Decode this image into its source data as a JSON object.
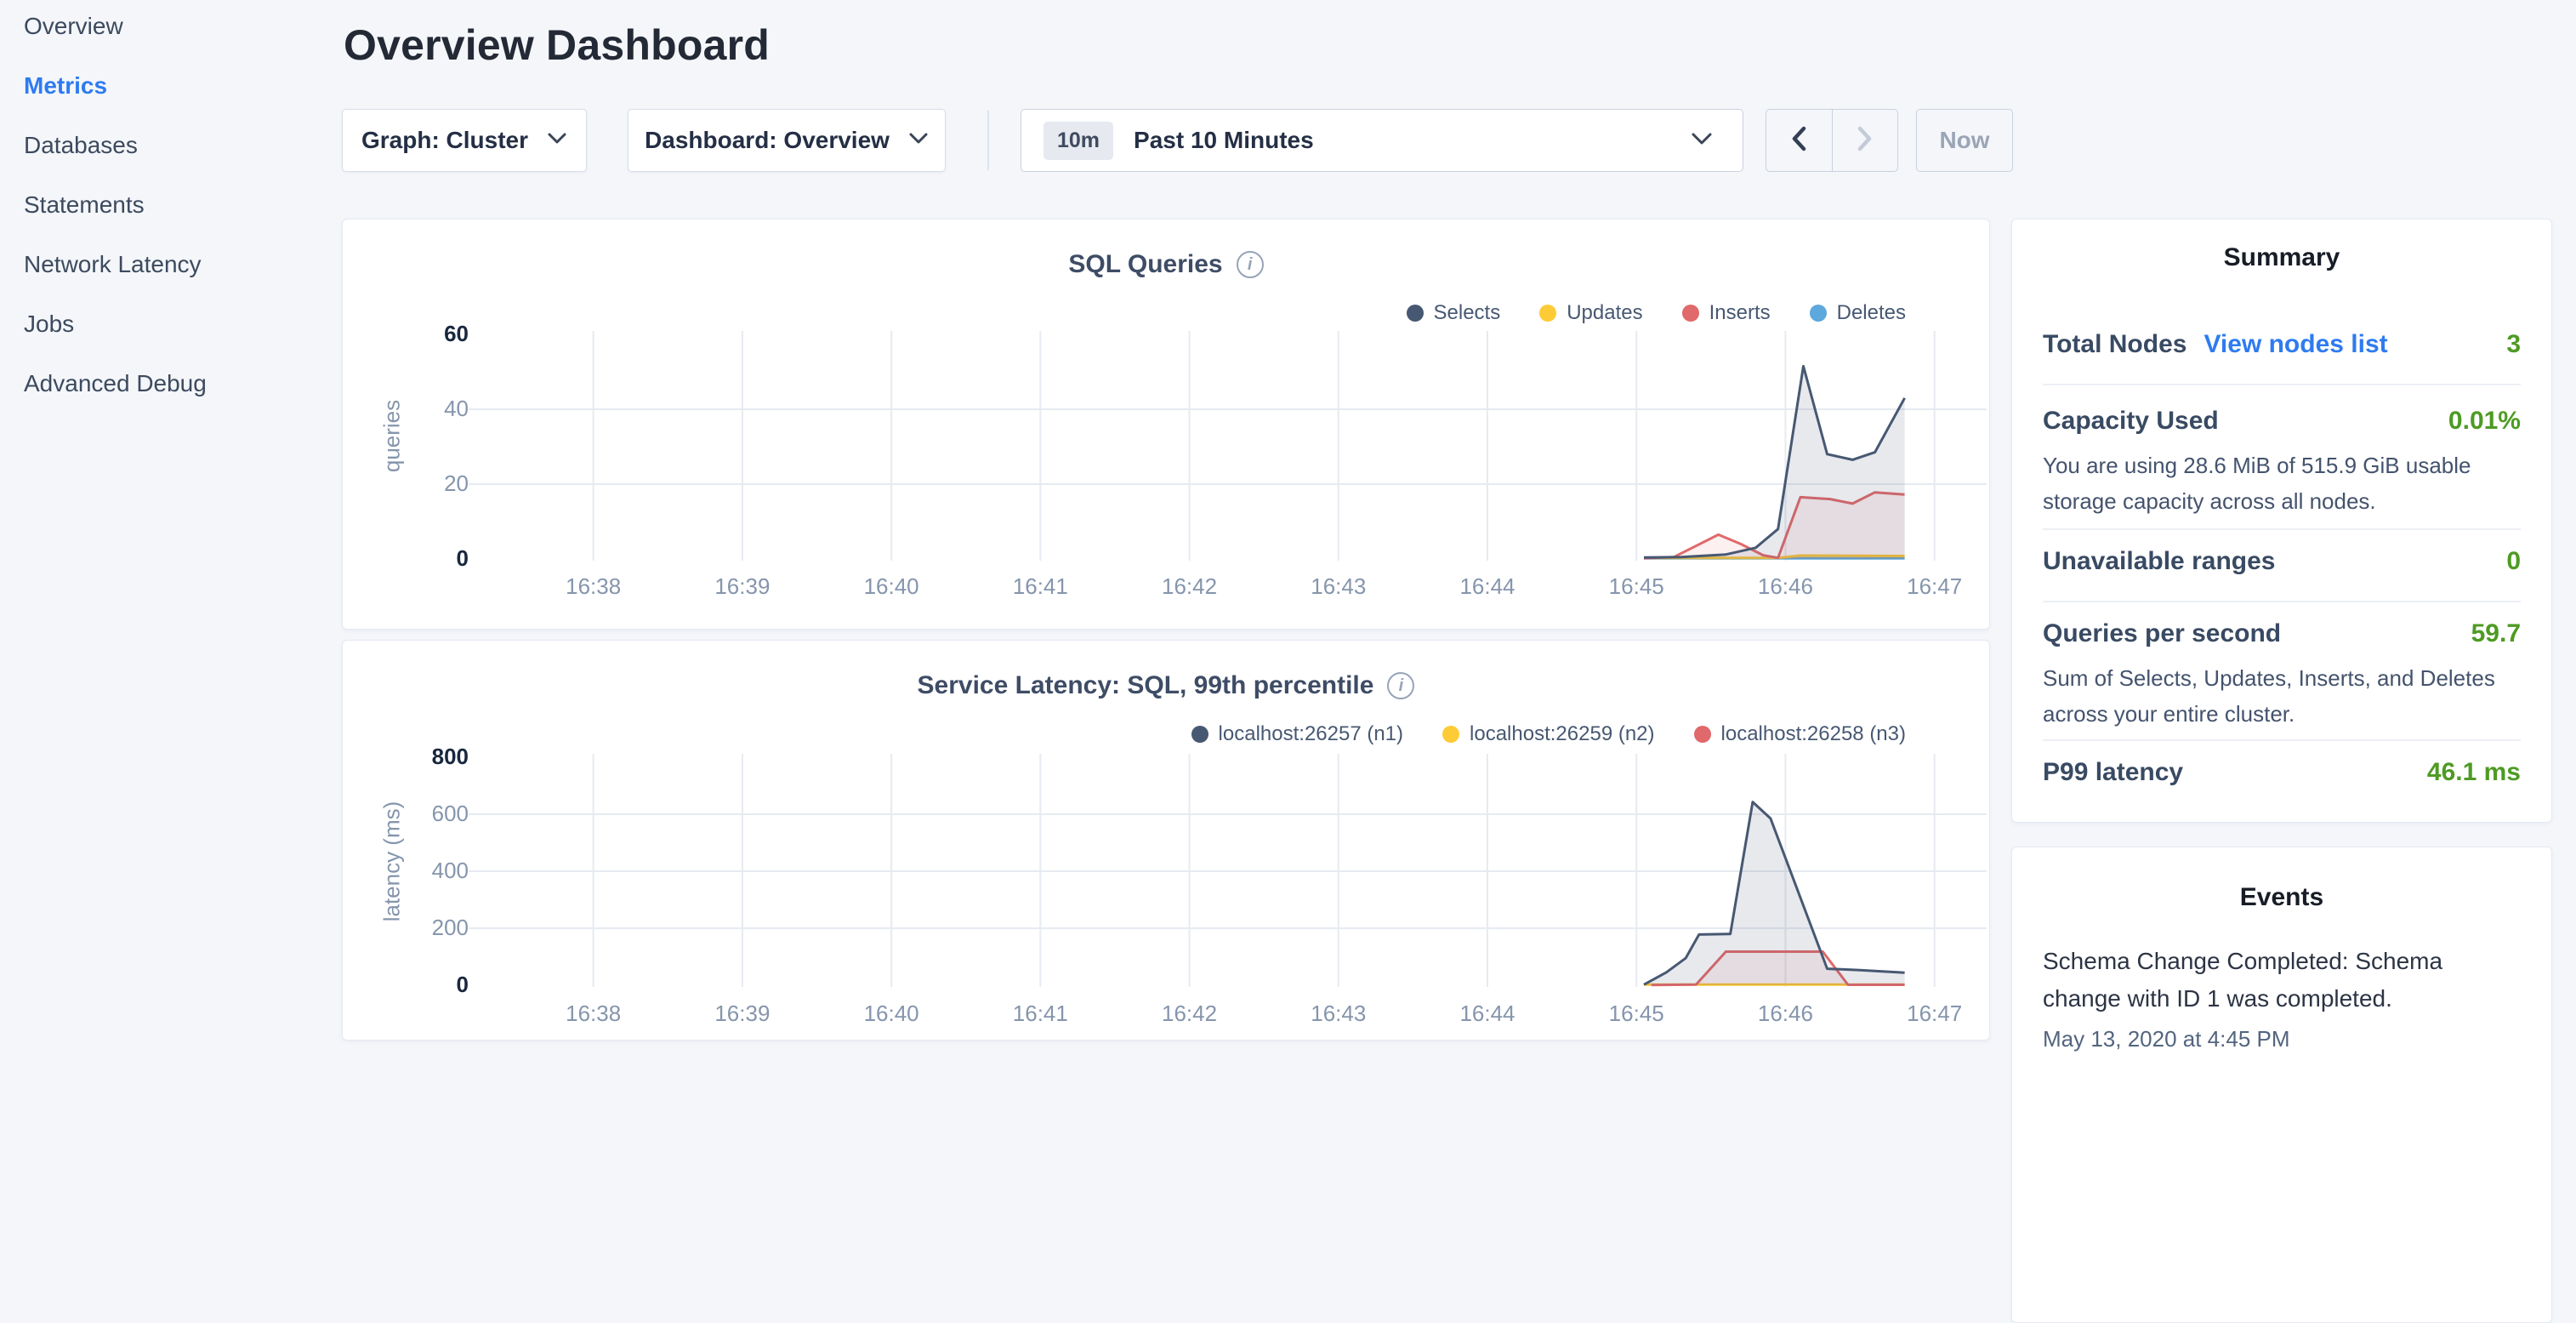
{
  "sidebar": {
    "items": [
      {
        "label": "Overview",
        "active": false
      },
      {
        "label": "Metrics",
        "active": true
      },
      {
        "label": "Databases",
        "active": false
      },
      {
        "label": "Statements",
        "active": false
      },
      {
        "label": "Network Latency",
        "active": false
      },
      {
        "label": "Jobs",
        "active": false
      },
      {
        "label": "Advanced Debug",
        "active": false
      }
    ]
  },
  "header": {
    "title": "Overview Dashboard"
  },
  "controls": {
    "graph_dropdown": {
      "label": "Graph: Cluster"
    },
    "dashboard_dropdown": {
      "label": "Dashboard: Overview"
    },
    "time_selector": {
      "badge": "10m",
      "label": "Past 10 Minutes"
    },
    "now_label": "Now"
  },
  "colors": {
    "accent_blue": "#2e7bf0",
    "value_green": "#4e9b23",
    "grid": "#e6eaf1",
    "series_navy": "#475872",
    "series_yellow": "#fdcb35",
    "series_red": "#e0696b",
    "series_blue": "#5da8dd"
  },
  "chart_data": [
    {
      "id": "sql-queries",
      "type": "area",
      "title": "SQL Queries",
      "ylabel": "queries",
      "x_ticks": [
        {
          "minute": 38,
          "label": "16:38"
        },
        {
          "minute": 39,
          "label": "16:39"
        },
        {
          "minute": 40,
          "label": "16:40"
        },
        {
          "minute": 41,
          "label": "16:41"
        },
        {
          "minute": 42,
          "label": "16:42"
        },
        {
          "minute": 43,
          "label": "16:43"
        },
        {
          "minute": 44,
          "label": "16:44"
        },
        {
          "minute": 45,
          "label": "16:45"
        },
        {
          "minute": 46,
          "label": "16:46"
        },
        {
          "minute": 47,
          "label": "16:47"
        }
      ],
      "y_ticks": [
        {
          "v": 0,
          "label": "0",
          "bold": true
        },
        {
          "v": 20,
          "label": "20",
          "bold": false
        },
        {
          "v": 40,
          "label": "40",
          "bold": false
        },
        {
          "v": 60,
          "label": "60",
          "bold": true
        }
      ],
      "y_gridlines": [
        20,
        40
      ],
      "ylim": [
        0,
        60
      ],
      "legend_position": "top-right",
      "grid": true,
      "series": [
        {
          "name": "Selects",
          "color": "#475872",
          "fill_alpha": 0.13,
          "points": [
            [
              45.05,
              0.4
            ],
            [
              45.3,
              0.5
            ],
            [
              45.6,
              1.2
            ],
            [
              45.8,
              3
            ],
            [
              45.95,
              8
            ],
            [
              46.12,
              51.5
            ],
            [
              46.28,
              28
            ],
            [
              46.45,
              26.5
            ],
            [
              46.6,
              28.5
            ],
            [
              46.8,
              43
            ]
          ]
        },
        {
          "name": "Updates",
          "color": "#fdcb35",
          "fill_alpha": 0.08,
          "points": [
            [
              45.05,
              0.3
            ],
            [
              45.95,
              0.3
            ],
            [
              46.1,
              0.9
            ],
            [
              46.8,
              0.8
            ]
          ]
        },
        {
          "name": "Inserts",
          "color": "#e0696b",
          "fill_alpha": 0.1,
          "points": [
            [
              45.05,
              0.2
            ],
            [
              45.25,
              0.5
            ],
            [
              45.55,
              6.5
            ],
            [
              45.7,
              4
            ],
            [
              45.85,
              1
            ],
            [
              45.95,
              0.3
            ],
            [
              46.1,
              16.5
            ],
            [
              46.3,
              16
            ],
            [
              46.45,
              14.8
            ],
            [
              46.6,
              17.8
            ],
            [
              46.8,
              17.2
            ]
          ]
        },
        {
          "name": "Deletes",
          "color": "#5da8dd",
          "fill_alpha": 0.08,
          "points": [
            [
              45.05,
              0.15
            ],
            [
              46.8,
              0.15
            ]
          ]
        }
      ],
      "draw_order": [
        3,
        1,
        2,
        0
      ]
    },
    {
      "id": "service-latency",
      "type": "area",
      "title": "Service Latency: SQL, 99th percentile",
      "ylabel": "latency (ms)",
      "x_ticks": [
        {
          "minute": 38,
          "label": "16:38"
        },
        {
          "minute": 39,
          "label": "16:39"
        },
        {
          "minute": 40,
          "label": "16:40"
        },
        {
          "minute": 41,
          "label": "16:41"
        },
        {
          "minute": 42,
          "label": "16:42"
        },
        {
          "minute": 43,
          "label": "16:43"
        },
        {
          "minute": 44,
          "label": "16:44"
        },
        {
          "minute": 45,
          "label": "16:45"
        },
        {
          "minute": 46,
          "label": "16:46"
        },
        {
          "minute": 47,
          "label": "16:47"
        }
      ],
      "y_ticks": [
        {
          "v": 0,
          "label": "0",
          "bold": true
        },
        {
          "v": 200,
          "label": "200",
          "bold": false
        },
        {
          "v": 400,
          "label": "400",
          "bold": false
        },
        {
          "v": 600,
          "label": "600",
          "bold": false
        },
        {
          "v": 800,
          "label": "800",
          "bold": true
        }
      ],
      "y_gridlines": [
        200,
        400,
        600
      ],
      "ylim": [
        0,
        800
      ],
      "legend_position": "top-right",
      "grid": true,
      "series": [
        {
          "name": "localhost:26257 (n1)",
          "color": "#475872",
          "fill_alpha": 0.13,
          "points": [
            [
              45.05,
              2
            ],
            [
              45.2,
              45
            ],
            [
              45.33,
              95
            ],
            [
              45.42,
              178
            ],
            [
              45.63,
              180
            ],
            [
              45.78,
              643
            ],
            [
              45.9,
              585
            ],
            [
              46.28,
              58
            ],
            [
              46.5,
              53
            ],
            [
              46.8,
              44
            ]
          ]
        },
        {
          "name": "localhost:26259 (n2)",
          "color": "#fdcb35",
          "fill_alpha": 0.08,
          "points": [
            [
              45.05,
              2
            ],
            [
              46.8,
              2
            ]
          ]
        },
        {
          "name": "localhost:26258 (n3)",
          "color": "#e0696b",
          "fill_alpha": 0.1,
          "points": [
            [
              45.1,
              1
            ],
            [
              45.4,
              2
            ],
            [
              45.6,
              118
            ],
            [
              46.25,
              118
            ],
            [
              46.42,
              1.5
            ],
            [
              46.8,
              1.5
            ]
          ]
        }
      ],
      "draw_order": [
        1,
        2,
        0
      ]
    }
  ],
  "summary": {
    "title": "Summary",
    "rows": [
      {
        "label": "Total Nodes",
        "link": "View nodes list",
        "value": "3"
      },
      {
        "label": "Capacity Used",
        "value": "0.01%",
        "description": "You are using 28.6 MiB of 515.9 GiB usable storage capacity across all nodes."
      },
      {
        "label": "Unavailable ranges",
        "value": "0"
      },
      {
        "label": "Queries per second",
        "value": "59.7",
        "description": "Sum of Selects, Updates, Inserts, and Deletes across your entire cluster."
      },
      {
        "label": "P99 latency",
        "value": "46.1 ms"
      }
    ]
  },
  "events": {
    "title": "Events",
    "items": [
      {
        "text": "Schema Change Completed: Schema change with ID 1 was completed.",
        "time": "May 13, 2020 at 4:45 PM"
      }
    ]
  }
}
